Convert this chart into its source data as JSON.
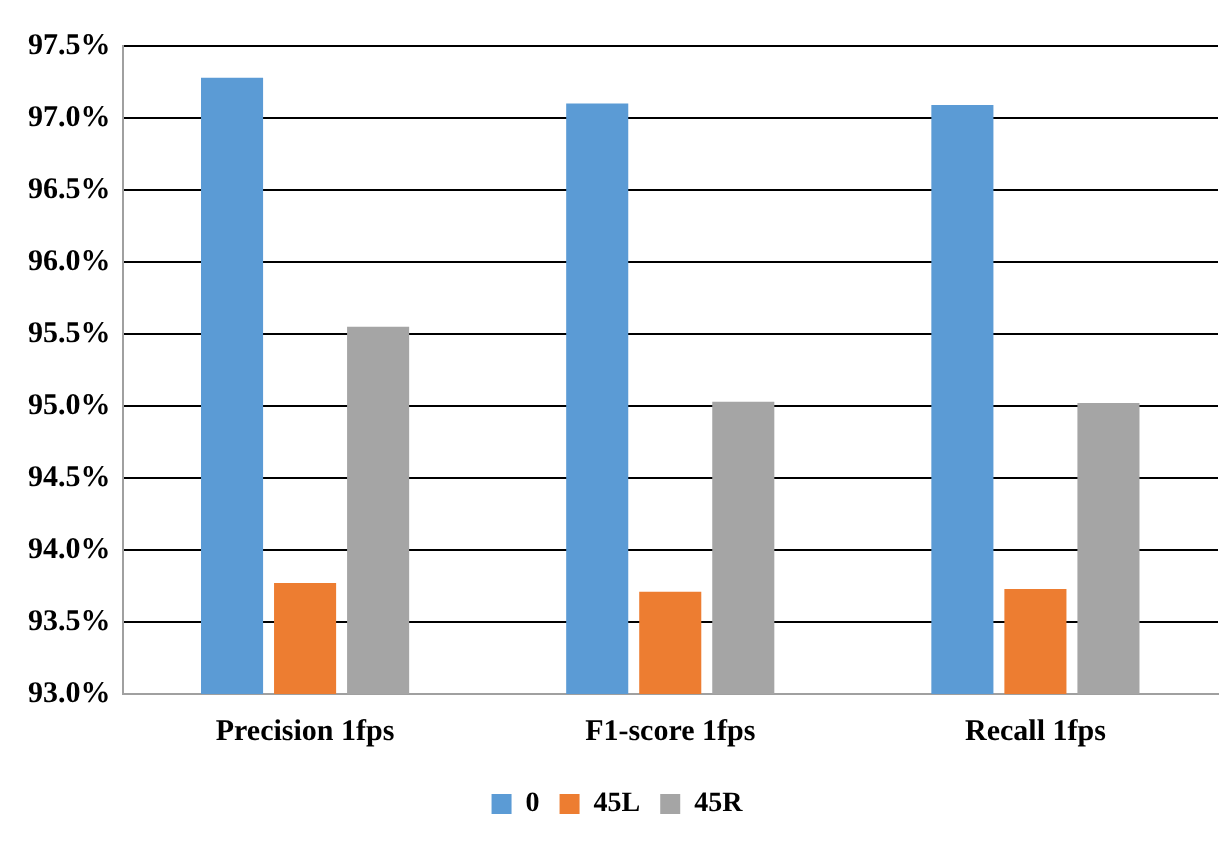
{
  "chart_data": {
    "type": "bar",
    "categories": [
      "Precision 1fps",
      "F1-score 1fps",
      "Recall 1fps"
    ],
    "series": [
      {
        "name": "0",
        "color": "#5b9bd5",
        "values": [
          97.28,
          97.1,
          97.09
        ]
      },
      {
        "name": "45L",
        "color": "#ed7d31",
        "values": [
          93.77,
          93.71,
          93.73
        ]
      },
      {
        "name": "45R",
        "color": "#a5a5a5",
        "values": [
          95.55,
          95.03,
          95.02
        ]
      }
    ],
    "ylim": [
      93,
      97.5
    ],
    "yticks": [
      {
        "value": 93,
        "label": "93.0%"
      },
      {
        "value": 93.5,
        "label": "93.5%"
      },
      {
        "value": 94,
        "label": "94.0%"
      },
      {
        "value": 94.5,
        "label": "94.5%"
      },
      {
        "value": 95,
        "label": "95.0%"
      },
      {
        "value": 95.5,
        "label": "95.5%"
      },
      {
        "value": 96,
        "label": "96.0%"
      },
      {
        "value": 96.5,
        "label": "96.5%"
      },
      {
        "value": 97,
        "label": "97.0%"
      },
      {
        "value": 97.5,
        "label": "97.5%"
      }
    ],
    "grid": "y",
    "legend": "bottom"
  }
}
